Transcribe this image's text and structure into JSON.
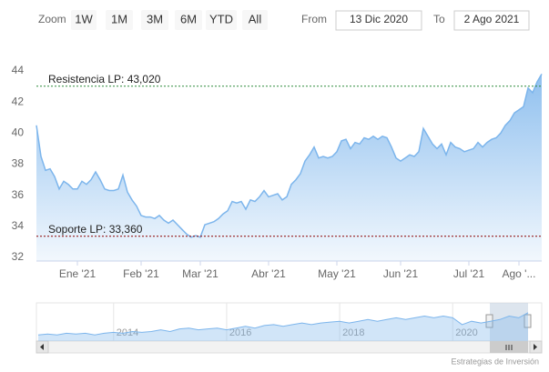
{
  "range_selector": {
    "zoom_label": "Zoom",
    "buttons": [
      "1W",
      "1M",
      "3M",
      "6M",
      "YTD",
      "All"
    ],
    "from_label": "From",
    "from_value": "13 Dic 2020",
    "to_label": "To",
    "to_value": "2 Ago 2021"
  },
  "chart_data": {
    "type": "area",
    "series": [
      {
        "color": "#7cb5ec",
        "values": [
          40.5,
          38.5,
          37.6,
          37.7,
          37.2,
          36.4,
          36.9,
          36.7,
          36.4,
          36.4,
          36.9,
          36.7,
          37.0,
          37.5,
          37.0,
          36.4,
          36.3,
          36.3,
          36.4,
          37.3,
          36.2,
          35.7,
          35.3,
          34.7,
          34.6,
          34.6,
          34.5,
          34.7,
          34.4,
          34.2,
          34.4,
          34.1,
          33.8,
          33.5,
          33.3,
          33.4,
          33.3,
          34.1,
          34.2,
          34.3,
          34.5,
          34.8,
          35.0,
          35.6,
          35.5,
          35.6,
          35.1,
          35.7,
          35.6,
          35.9,
          36.3,
          35.9,
          36.0,
          36.1,
          35.7,
          35.9,
          36.7,
          37.0,
          37.4,
          38.2,
          38.6,
          39.1,
          38.4,
          38.5,
          38.4,
          38.5,
          38.8,
          39.5,
          39.6,
          39.0,
          39.4,
          39.3,
          39.7,
          39.6,
          39.8,
          39.6,
          39.8,
          39.7,
          39.1,
          38.4,
          38.2,
          38.4,
          38.6,
          38.5,
          38.8,
          40.3,
          39.8,
          39.3,
          39.0,
          39.3,
          38.6,
          39.4,
          39.1,
          39.0,
          38.8,
          38.9,
          39.0,
          39.4,
          39.1,
          39.4,
          39.6,
          39.7,
          40.0,
          40.5,
          40.8,
          41.3,
          41.5,
          41.7,
          42.9,
          42.6,
          43.3,
          43.8
        ]
      }
    ],
    "xlim": [
      0,
      111
    ],
    "xticks": [
      {
        "value": 9,
        "label": "Ene '21"
      },
      {
        "value": 23,
        "label": "Feb '21"
      },
      {
        "value": 36,
        "label": "Mar '21"
      },
      {
        "value": 51,
        "label": "Abr '21"
      },
      {
        "value": 66,
        "label": "May '21"
      },
      {
        "value": 80,
        "label": "Jun '21"
      },
      {
        "value": 95,
        "label": "Jul '21"
      },
      {
        "value": 106,
        "label": "Ago '..."
      }
    ],
    "ylim": [
      32,
      44
    ],
    "yticks": [
      32,
      34,
      36,
      38,
      40,
      42,
      44
    ],
    "grid": false,
    "plot_lines": [
      {
        "label": "Resistencia LP: 43,020",
        "value": 43.02,
        "color": "#2e8b3a"
      },
      {
        "label": "Soporte LP: 33,360",
        "value": 33.36,
        "color": "#8b0000"
      }
    ]
  },
  "navigator": {
    "color": "#7cb5ec",
    "values": [
      27,
      27.5,
      27,
      28,
      27.5,
      28,
      27,
      28,
      28.5,
      28,
      29,
      28.5,
      29,
      30,
      29,
      30.5,
      31,
      30,
      30.5,
      31,
      30,
      31,
      32,
      31,
      32.5,
      33,
      32,
      33,
      34,
      33,
      34,
      34.5,
      35,
      34,
      35,
      36,
      35,
      36,
      37,
      36,
      37,
      38,
      37,
      38,
      37,
      33,
      35,
      34,
      35,
      36,
      38,
      37,
      40
    ],
    "xlim": [
      0,
      52
    ],
    "ylim": [
      25,
      42
    ],
    "xticks": [
      {
        "value": 8,
        "label": "2014"
      },
      {
        "value": 20,
        "label": "2016"
      },
      {
        "value": 32,
        "label": "2018"
      },
      {
        "value": 44,
        "label": "2020"
      }
    ]
  },
  "credit": "Estrategias de Inversión"
}
